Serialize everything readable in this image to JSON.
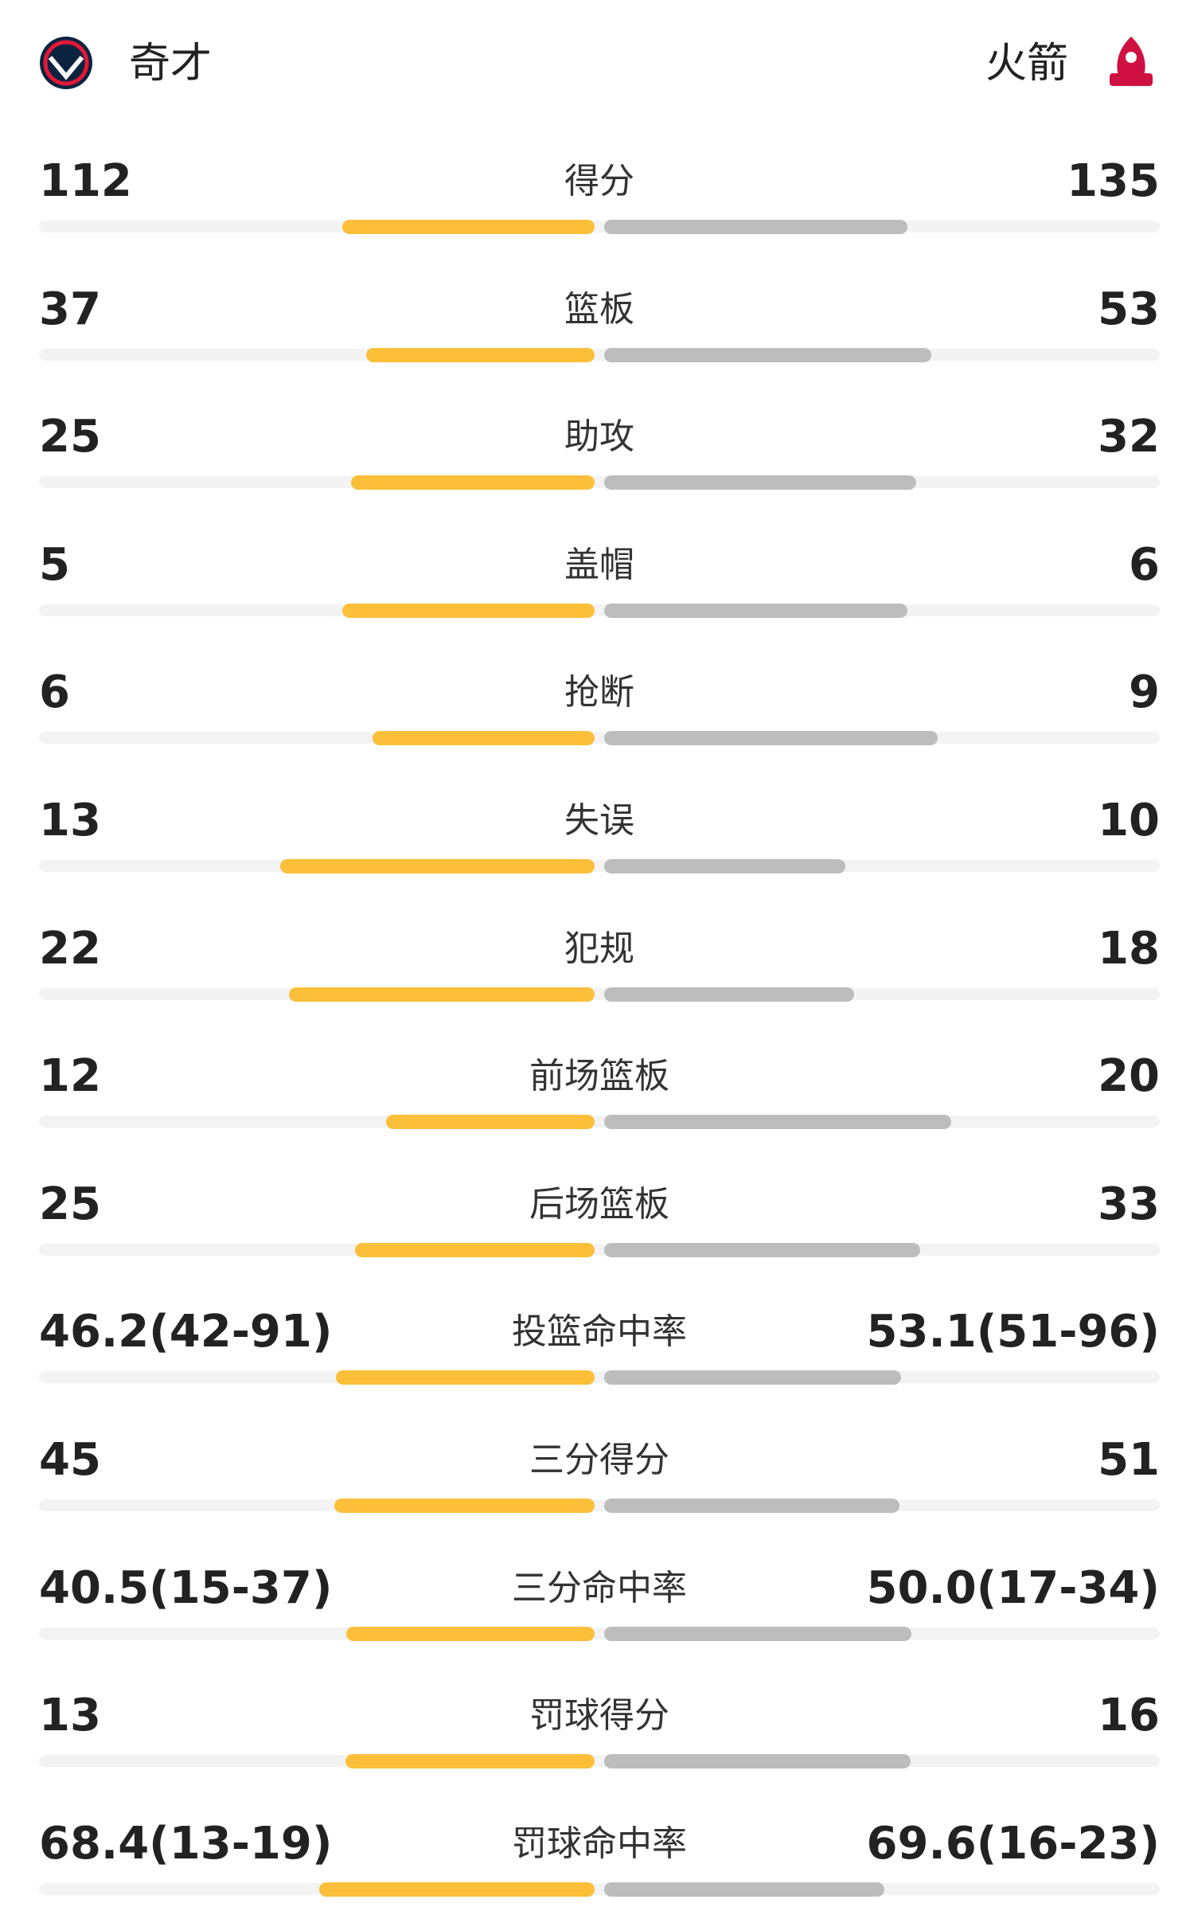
{
  "header": {
    "left_team": "奇才",
    "right_team": "火箭"
  },
  "rows": [
    {
      "label": "得分",
      "values": [
        112,
        135
      ]
    },
    {
      "label": "篮板",
      "values": [
        37,
        53
      ]
    },
    {
      "label": "助攻",
      "values": [
        25,
        32
      ]
    },
    {
      "label": "盖帽",
      "values": [
        5,
        6
      ]
    },
    {
      "label": "抢断",
      "values": [
        6,
        9
      ]
    },
    {
      "label": "失误",
      "values": [
        13,
        10
      ]
    },
    {
      "label": "犯规",
      "values": [
        22,
        18
      ]
    },
    {
      "label": "前场篮板",
      "values": [
        12,
        20
      ]
    },
    {
      "label": "后场篮板",
      "values": [
        25,
        33
      ]
    },
    {
      "label": "投篮命中率",
      "values": [
        46.2,
        53.1
      ],
      "value_labels": [
        "46.2(42-91)",
        "53.1(51-96)"
      ]
    },
    {
      "label": "三分得分",
      "values": [
        45,
        51
      ]
    },
    {
      "label": "三分命中率",
      "values": [
        40.5,
        50.0
      ],
      "value_labels": [
        "40.5(15-37)",
        "50.0(17-34)"
      ]
    },
    {
      "label": "罚球得分",
      "values": [
        13,
        16
      ]
    },
    {
      "label": "罚球命中率",
      "values": [
        68.4,
        69.6
      ],
      "value_labels": [
        "68.4(13-19)",
        "69.6(16-23)"
      ]
    }
  ]
}
